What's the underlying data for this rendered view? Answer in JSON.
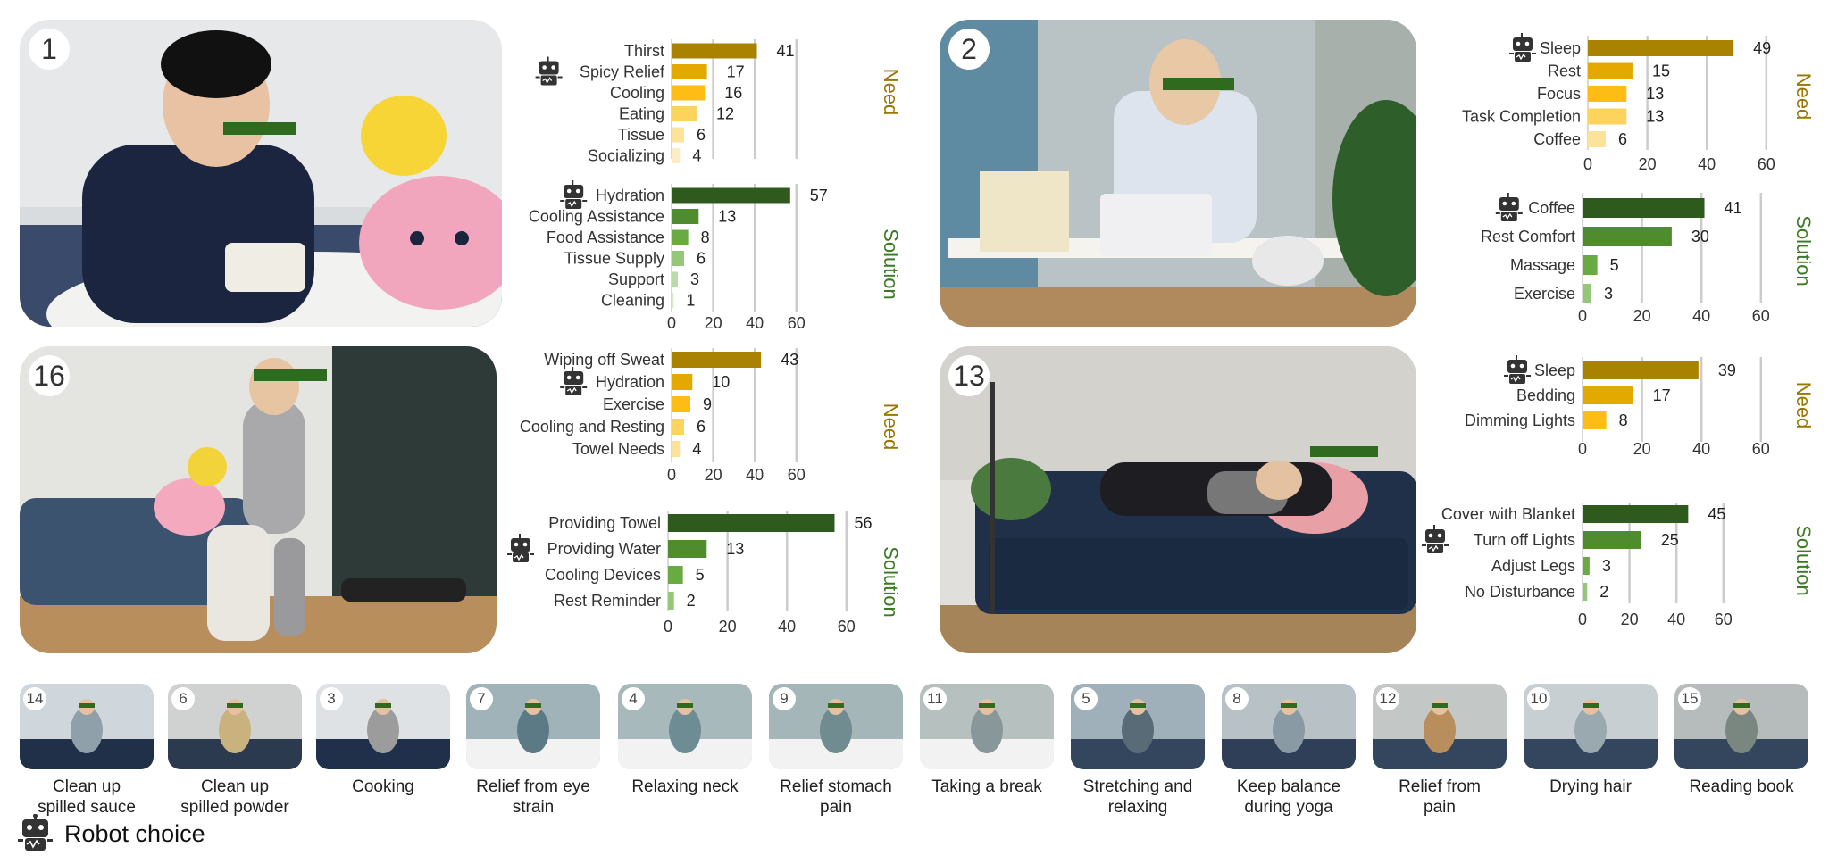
{
  "colors": {
    "need": [
      "#a98200",
      "#e3a900",
      "#fdbd14",
      "#fdd35e",
      "#fde39a",
      "#fdedc4"
    ],
    "solution": [
      "#2f5a1d",
      "#4e8c2e",
      "#6aaa43",
      "#94c77a",
      "#b9dba8",
      "#d7ecc9"
    ],
    "need_label": "#9a7500",
    "solution_label": "#3a7a22",
    "axis": "#cccccc"
  },
  "scenes": [
    {
      "badge": "1",
      "photo": "person-eating-spicy-noodles"
    },
    {
      "badge": "2",
      "photo": "person-yawning-at-desk"
    },
    {
      "badge": "16",
      "photo": "person-on-exercise-bike"
    },
    {
      "badge": "13",
      "photo": "person-lying-on-sofa"
    }
  ],
  "chart_data": [
    {
      "type": "bar",
      "orientation": "horizontal",
      "scene": "1",
      "group": "Need",
      "categories": [
        "Thirst",
        "Spicy Relief",
        "Cooling",
        "Eating",
        "Tissue",
        "Socializing"
      ],
      "values": [
        41,
        17,
        16,
        12,
        6,
        4
      ],
      "robot_choice": "Spicy Relief"
    },
    {
      "type": "bar",
      "orientation": "horizontal",
      "scene": "1",
      "group": "Solution",
      "categories": [
        "Hydration",
        "Cooling Assistance",
        "Food Assistance",
        "Tissue Supply",
        "Support",
        "Cleaning"
      ],
      "values": [
        57,
        13,
        8,
        6,
        3,
        1
      ],
      "robot_choice": "Hydration",
      "xticks": [
        "0",
        "20",
        "40",
        "60"
      ],
      "xlim": [
        0,
        60
      ]
    },
    {
      "type": "bar",
      "orientation": "horizontal",
      "scene": "2",
      "group": "Need",
      "categories": [
        "Sleep",
        "Rest",
        "Focus",
        "Task Completion",
        "Coffee"
      ],
      "values": [
        49,
        15,
        13,
        13,
        6
      ],
      "robot_choice": "Sleep",
      "xticks": [
        "0",
        "20",
        "40",
        "60"
      ],
      "xlim": [
        0,
        60
      ]
    },
    {
      "type": "bar",
      "orientation": "horizontal",
      "scene": "2",
      "group": "Solution",
      "categories": [
        "Coffee",
        "Rest Comfort",
        "Massage",
        "Exercise"
      ],
      "values": [
        41,
        30,
        5,
        3
      ],
      "robot_choice": "Coffee",
      "xticks": [
        "0",
        "20",
        "40",
        "60"
      ],
      "xlim": [
        0,
        60
      ]
    },
    {
      "type": "bar",
      "orientation": "horizontal",
      "scene": "16",
      "group": "Need",
      "categories": [
        "Wiping off Sweat",
        "Hydration",
        "Exercise",
        "Cooling and Resting",
        "Towel Needs"
      ],
      "values": [
        43,
        10,
        9,
        6,
        4
      ],
      "robot_choice": "Hydration",
      "xticks": [
        "0",
        "20",
        "40",
        "60"
      ],
      "xlim": [
        0,
        60
      ]
    },
    {
      "type": "bar",
      "orientation": "horizontal",
      "scene": "16",
      "group": "Solution",
      "categories": [
        "Providing Towel",
        "Providing Water",
        "Cooling Devices",
        "Rest Reminder"
      ],
      "values": [
        56,
        13,
        5,
        2
      ],
      "robot_choice": "Providing Water",
      "xticks": [
        "0",
        "20",
        "40",
        "60"
      ],
      "xlim": [
        0,
        60
      ]
    },
    {
      "type": "bar",
      "orientation": "horizontal",
      "scene": "13",
      "group": "Need",
      "categories": [
        "Sleep",
        "Bedding",
        "Dimming Lights"
      ],
      "values": [
        39,
        17,
        8
      ],
      "robot_choice": "Sleep",
      "xticks": [
        "0",
        "20",
        "40",
        "60"
      ],
      "xlim": [
        0,
        60
      ]
    },
    {
      "type": "bar",
      "orientation": "horizontal",
      "scene": "13",
      "group": "Solution",
      "categories": [
        "Cover with Blanket",
        "Turn off Lights",
        "Adjust Legs",
        "No Disturbance"
      ],
      "values": [
        45,
        25,
        3,
        2
      ],
      "robot_choice": "Turn off Lights",
      "xticks": [
        "0",
        "20",
        "40",
        "60"
      ],
      "xlim": [
        0,
        60
      ]
    }
  ],
  "thumbnails": [
    {
      "badge": "14",
      "caption": [
        "Clean up",
        "spilled sauce"
      ]
    },
    {
      "badge": "6",
      "caption": [
        "Clean up",
        "spilled powder"
      ]
    },
    {
      "badge": "3",
      "caption": [
        "Cooking"
      ]
    },
    {
      "badge": "7",
      "caption": [
        "Relief from eye",
        "strain"
      ]
    },
    {
      "badge": "4",
      "caption": [
        "Relaxing neck"
      ]
    },
    {
      "badge": "9",
      "caption": [
        "Relief stomach",
        "pain"
      ]
    },
    {
      "badge": "11",
      "caption": [
        "Taking a break"
      ]
    },
    {
      "badge": "5",
      "caption": [
        "Stretching and",
        "relaxing"
      ]
    },
    {
      "badge": "8",
      "caption": [
        "Keep balance",
        "during yoga"
      ]
    },
    {
      "badge": "12",
      "caption": [
        "Relief from",
        "pain"
      ]
    },
    {
      "badge": "10",
      "caption": [
        "Drying hair"
      ]
    },
    {
      "badge": "15",
      "caption": [
        "Reading book"
      ]
    }
  ],
  "legend": {
    "icon": "robot-icon",
    "label": "Robot choice"
  }
}
